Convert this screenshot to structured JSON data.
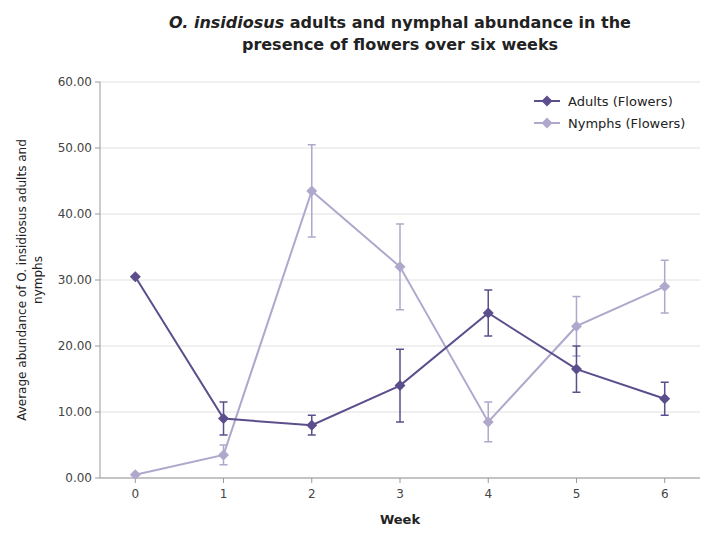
{
  "chart_data": {
    "type": "line",
    "title": "O. insidiosus adults and nymphal abundance in the\npresence of flowers over six weeks",
    "x_label": "Week",
    "y_label": "Average abundance of O. insidiosus adults and\nnymphs",
    "x": [
      0,
      1,
      2,
      3,
      4,
      5,
      6
    ],
    "series": [
      {
        "name": "Adults (Flowers)",
        "color": "#5c4e8c",
        "marker": "diamond",
        "line_style": "solid",
        "values": [
          30.5,
          9.0,
          8.0,
          14.0,
          25.0,
          16.5,
          12.0
        ],
        "errors": [
          0.0,
          2.5,
          1.5,
          5.5,
          3.5,
          3.5,
          2.5
        ]
      },
      {
        "name": "Nymphs (Flowers)",
        "color": "#b0a8cc",
        "marker": "diamond",
        "line_style": "solid",
        "values": [
          0.5,
          3.5,
          43.5,
          32.0,
          8.5,
          23.0,
          29.0
        ],
        "errors": [
          0.0,
          1.5,
          7.0,
          6.5,
          3.0,
          4.5,
          4.0
        ]
      }
    ],
    "xlim": [
      -0.4,
      6.4
    ],
    "xticks": [
      0,
      1,
      2,
      3,
      4,
      5,
      6
    ],
    "ylim": [
      0.0,
      60.0
    ],
    "yticks": [
      {
        "value": 0.0,
        "label": "0.00"
      },
      {
        "value": 10.0,
        "label": "10.00"
      },
      {
        "value": 20.0,
        "label": "20.00"
      },
      {
        "value": 30.0,
        "label": "30.00"
      },
      {
        "value": 40.0,
        "label": "40.00"
      },
      {
        "value": 50.0,
        "label": "50.00"
      },
      {
        "value": 60.0,
        "label": "60.00"
      }
    ],
    "grid": true,
    "legend": "upper right"
  }
}
